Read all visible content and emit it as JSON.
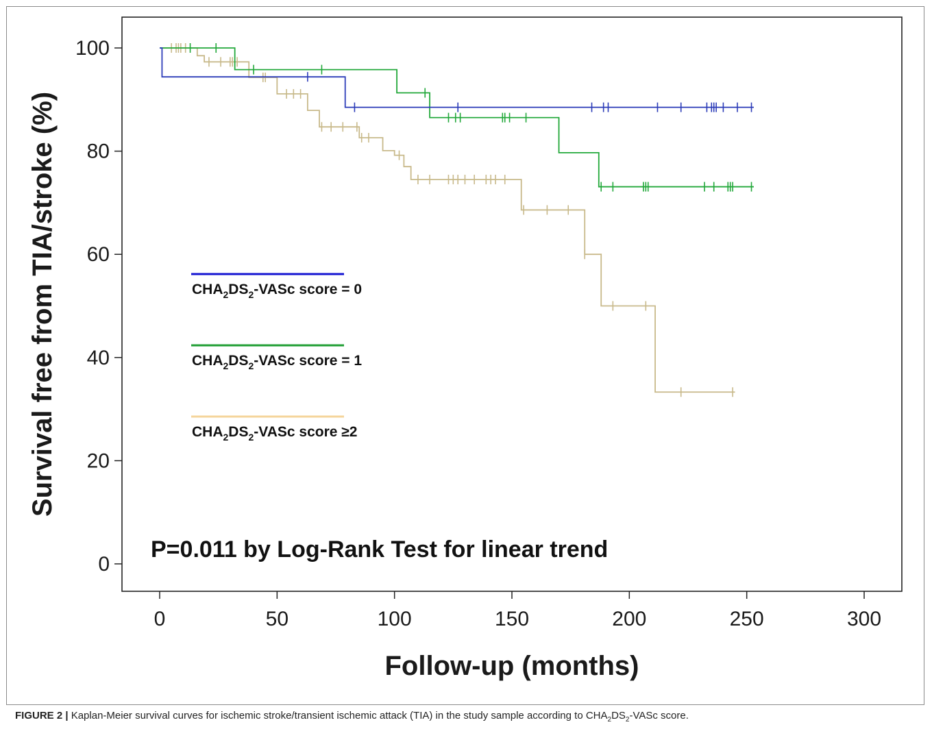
{
  "chart_data": {
    "type": "line",
    "subtype": "kaplan-meier step curves with censor ticks",
    "xlabel": "Follow-up (months)",
    "ylabel": "Survival free from TIA/stroke (%)",
    "xlim": [
      0,
      300
    ],
    "ylim": [
      0,
      100
    ],
    "xticks": [
      0,
      50,
      100,
      150,
      200,
      250,
      300
    ],
    "yticks": [
      0,
      20,
      40,
      60,
      80,
      100
    ],
    "grid": false,
    "legend_position": "middle-left",
    "annotation": "P=0.011 by Log-Rank Test for linear trend",
    "series": [
      {
        "name": "CHA2DS2-VASc score = 0",
        "color": "#2b3bb8",
        "legend_color": "#1414d2",
        "steps": [
          [
            0,
            100
          ],
          [
            1,
            94.4
          ],
          [
            79,
            88.5
          ],
          [
            253,
            88.5
          ]
        ],
        "censored": [
          [
            63,
            94.4
          ],
          [
            83,
            88.5
          ],
          [
            127,
            88.5
          ],
          [
            184,
            88.5
          ],
          [
            189,
            88.5
          ],
          [
            191,
            88.5
          ],
          [
            212,
            88.5
          ],
          [
            222,
            88.5
          ],
          [
            233,
            88.5
          ],
          [
            235,
            88.5
          ],
          [
            236,
            88.5
          ],
          [
            237,
            88.5
          ],
          [
            240,
            88.5
          ],
          [
            246,
            88.5
          ],
          [
            252,
            88.5
          ]
        ]
      },
      {
        "name": "CHA2DS2-VASc score = 1",
        "color": "#22a83a",
        "legend_color": "#1f9e33",
        "steps": [
          [
            0,
            100
          ],
          [
            32,
            95.8
          ],
          [
            101,
            91.3
          ],
          [
            115,
            86.5
          ],
          [
            170,
            79.7
          ],
          [
            187,
            73.1
          ],
          [
            253,
            73.1
          ]
        ],
        "censored": [
          [
            13,
            100
          ],
          [
            24,
            100
          ],
          [
            40,
            95.8
          ],
          [
            69,
            95.8
          ],
          [
            113,
            91.3
          ],
          [
            123,
            86.5
          ],
          [
            126,
            86.5
          ],
          [
            128,
            86.5
          ],
          [
            146,
            86.5
          ],
          [
            147,
            86.5
          ],
          [
            149,
            86.5
          ],
          [
            156,
            86.5
          ],
          [
            188,
            73.1
          ],
          [
            193,
            73.1
          ],
          [
            206,
            73.1
          ],
          [
            207,
            73.1
          ],
          [
            208,
            73.1
          ],
          [
            232,
            73.1
          ],
          [
            236,
            73.1
          ],
          [
            242,
            73.1
          ],
          [
            243,
            73.1
          ],
          [
            244,
            73.1
          ],
          [
            252,
            73.1
          ]
        ]
      },
      {
        "name": "CHA2DS2-VASc score ≥2",
        "color": "#c8b98a",
        "legend_color": "#f5d49a",
        "steps": [
          [
            0,
            100
          ],
          [
            16,
            98.5
          ],
          [
            19,
            97.3
          ],
          [
            38,
            94.3
          ],
          [
            50,
            91.1
          ],
          [
            63,
            87.9
          ],
          [
            68,
            84.7
          ],
          [
            85,
            82.6
          ],
          [
            95,
            80.1
          ],
          [
            100,
            79.2
          ],
          [
            104,
            77.0
          ],
          [
            107,
            74.5
          ],
          [
            154,
            68.6
          ],
          [
            181,
            60.0
          ],
          [
            188,
            50.0
          ],
          [
            211,
            33.3
          ],
          [
            245,
            33.3
          ]
        ],
        "censored": [
          [
            5,
            100
          ],
          [
            7,
            100
          ],
          [
            8,
            100
          ],
          [
            9,
            100
          ],
          [
            11,
            100
          ],
          [
            21,
            97.3
          ],
          [
            26,
            97.3
          ],
          [
            30,
            97.3
          ],
          [
            31,
            97.3
          ],
          [
            33,
            97.3
          ],
          [
            44,
            94.3
          ],
          [
            45,
            94.3
          ],
          [
            54,
            91.1
          ],
          [
            57,
            91.1
          ],
          [
            60,
            91.1
          ],
          [
            69,
            84.7
          ],
          [
            73,
            84.7
          ],
          [
            78,
            84.7
          ],
          [
            84,
            84.7
          ],
          [
            86,
            82.6
          ],
          [
            89,
            82.6
          ],
          [
            102,
            79.2
          ],
          [
            110,
            74.5
          ],
          [
            115,
            74.5
          ],
          [
            123,
            74.5
          ],
          [
            125,
            74.5
          ],
          [
            127,
            74.5
          ],
          [
            130,
            74.5
          ],
          [
            134,
            74.5
          ],
          [
            139,
            74.5
          ],
          [
            141,
            74.5
          ],
          [
            143,
            74.5
          ],
          [
            147,
            74.5
          ],
          [
            155,
            68.6
          ],
          [
            165,
            68.6
          ],
          [
            174,
            68.6
          ],
          [
            181,
            60.0
          ],
          [
            193,
            50.0
          ],
          [
            207,
            50.0
          ],
          [
            222,
            33.3
          ],
          [
            244,
            33.3
          ]
        ]
      }
    ]
  },
  "caption": {
    "label": "FIGURE 2 |",
    "text_before": " Kaplan-Meier survival curves for ischemic stroke/transient ischemic attack (TIA) in the study sample according to CHA",
    "sub1": "2",
    "text_mid": "DS",
    "sub2": "2",
    "text_after": "-VASc score."
  }
}
